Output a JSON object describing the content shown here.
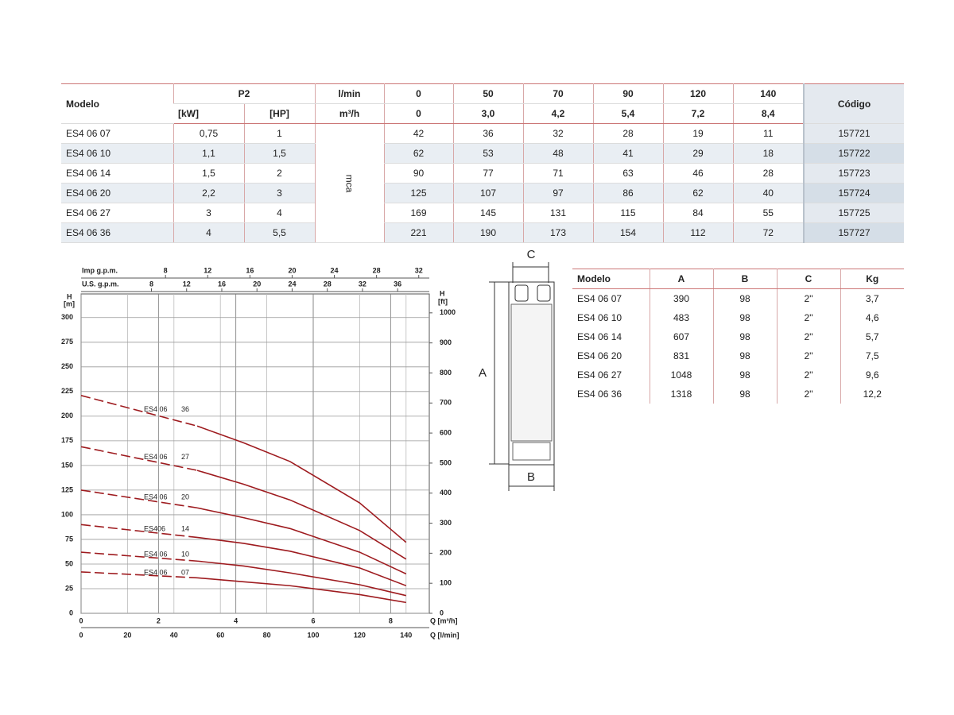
{
  "table": {
    "headers": {
      "model": "Modelo",
      "p2": "P2",
      "kw": "[kW]",
      "hp": "[HP]",
      "lmin": "l/min",
      "m3h": "m³/h",
      "code": "Código",
      "unit": "mca"
    },
    "flow_lmin": [
      0,
      50,
      70,
      90,
      120,
      140
    ],
    "flow_m3h": [
      "0",
      "3,0",
      "4,2",
      "5,4",
      "7,2",
      "8,4"
    ],
    "rows": [
      {
        "model": "ES4 06 07",
        "kw": "0,75",
        "hp": "1",
        "heads": [
          42,
          36,
          32,
          28,
          19,
          11
        ],
        "code": 157721
      },
      {
        "model": "ES4 06 10",
        "kw": "1,1",
        "hp": "1,5",
        "heads": [
          62,
          53,
          48,
          41,
          29,
          18
        ],
        "code": 157722
      },
      {
        "model": "ES4 06 14",
        "kw": "1,5",
        "hp": "2",
        "heads": [
          90,
          77,
          71,
          63,
          46,
          28
        ],
        "code": 157723
      },
      {
        "model": "ES4 06 20",
        "kw": "2,2",
        "hp": "3",
        "heads": [
          125,
          107,
          97,
          86,
          62,
          40
        ],
        "code": 157724
      },
      {
        "model": "ES4 06 27",
        "kw": "3",
        "hp": "4",
        "heads": [
          169,
          145,
          131,
          115,
          84,
          55
        ],
        "code": 157725
      },
      {
        "model": "ES4 06 36",
        "kw": "4",
        "hp": "5,5",
        "heads": [
          221,
          190,
          173,
          154,
          112,
          72
        ],
        "code": 157727
      }
    ]
  },
  "chart": {
    "type": "line",
    "color": "#9e1b1f",
    "grid": true,
    "x_axes": [
      {
        "label": "Q [l/min]",
        "xlim": [
          0,
          150
        ],
        "xticks": [
          0,
          20,
          40,
          60,
          80,
          100,
          120,
          140
        ]
      },
      {
        "label": "Q [m³/h]",
        "xlim": [
          0,
          9
        ],
        "xticks": [
          0,
          2,
          4,
          6,
          8
        ]
      },
      {
        "label": "Imp g.p.m.",
        "xlim": [
          0,
          33
        ],
        "xticks": [
          8,
          12,
          16,
          20,
          24,
          28,
          32
        ]
      },
      {
        "label": "U.S. g.p.m.",
        "xlim": [
          0,
          39.6
        ],
        "xticks": [
          8,
          12,
          16,
          20,
          24,
          28,
          32,
          36
        ]
      }
    ],
    "y_axis": {
      "label": "H",
      "unit": "[m]",
      "ylim": [
        0,
        324
      ],
      "yticks": [
        0,
        25,
        50,
        75,
        100,
        125,
        150,
        175,
        200,
        225,
        250,
        275,
        300
      ]
    },
    "y2_axis": {
      "label": "H",
      "unit": "[ft]",
      "y2lim": [
        0,
        1063
      ],
      "y2ticks": [
        0,
        100,
        200,
        300,
        400,
        500,
        600,
        700,
        800,
        900,
        1000
      ]
    },
    "curve_labels": [
      {
        "model": "ES4 06",
        "stages": "07"
      },
      {
        "model": "ES4 06",
        "stages": "10"
      },
      {
        "model": "ES406",
        "stages": "14"
      },
      {
        "model": "ES4 06",
        "stages": "20"
      },
      {
        "model": "ES4 06",
        "stages": "27"
      },
      {
        "model": "ES4 06",
        "stages": "36"
      }
    ]
  },
  "diagram": {
    "dim_a": "A",
    "dim_b": "B",
    "dim_c": "C"
  },
  "dimensions": {
    "headers": [
      "Modelo",
      "A",
      "B",
      "C",
      "Kg"
    ],
    "rows": [
      [
        "ES4 06 07",
        390,
        98,
        "2\"",
        "3,7"
      ],
      [
        "ES4 06 10",
        483,
        98,
        "2\"",
        "4,6"
      ],
      [
        "ES4 06 14",
        607,
        98,
        "2\"",
        "5,7"
      ],
      [
        "ES4 06 20",
        831,
        98,
        "2\"",
        "7,5"
      ],
      [
        "ES4 06 27",
        1048,
        98,
        "2\"",
        "9,6"
      ],
      [
        "ES4 06 36",
        1318,
        98,
        "2\"",
        "12,2"
      ]
    ]
  }
}
